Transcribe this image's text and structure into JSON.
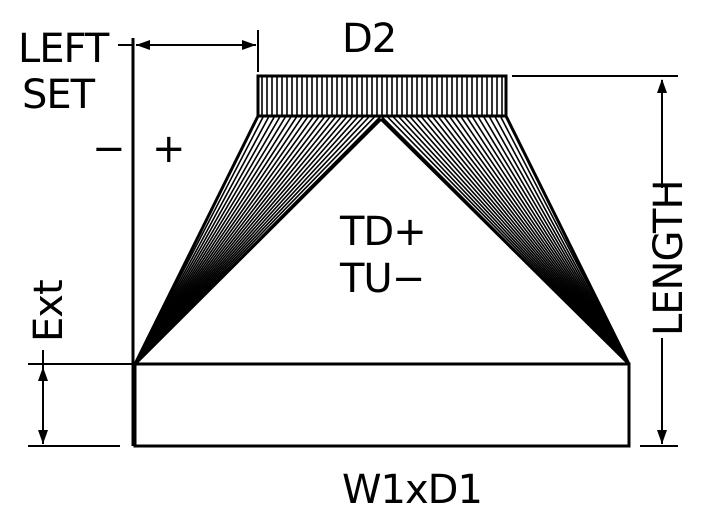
{
  "diagram": {
    "labels": {
      "left": "LEFT",
      "set": "SET",
      "d2": "D2",
      "minus": "−",
      "plus": "+",
      "td_plus": "TD+",
      "tu_minus": "TU−",
      "length": "LENGTH",
      "ext": "Ext",
      "w1xd1": "W1xD1"
    },
    "colors": {
      "line": "#000000",
      "background": "#ffffff"
    }
  }
}
